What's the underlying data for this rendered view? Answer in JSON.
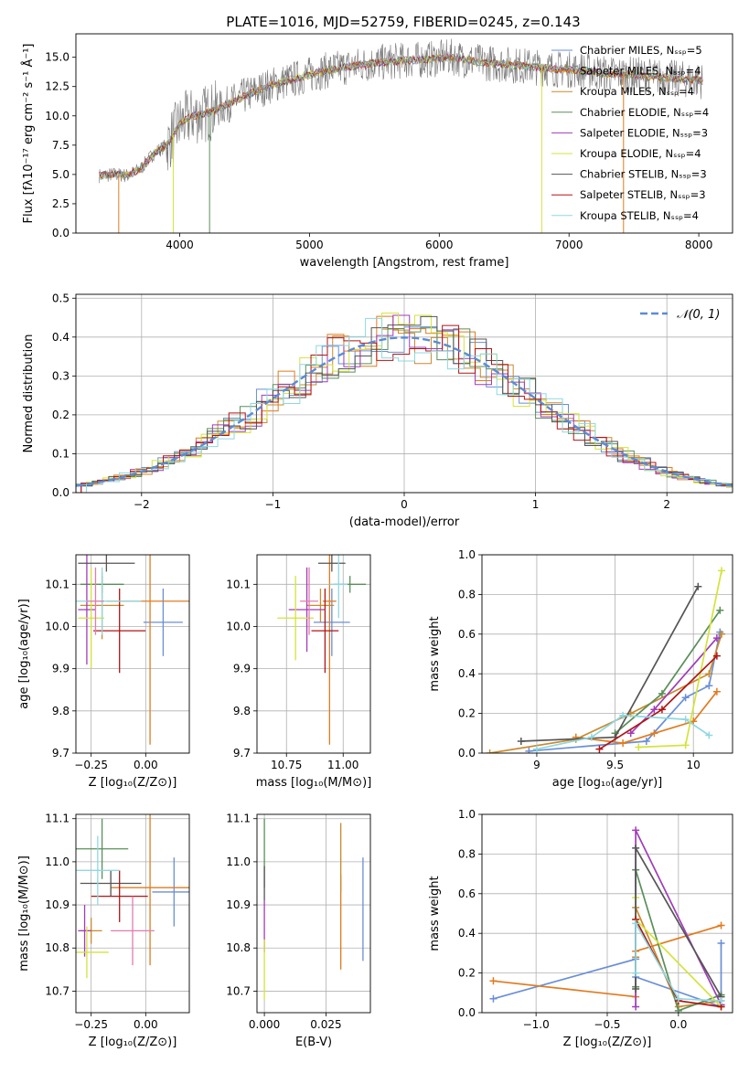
{
  "title": "PLATE=1016, MJD=52759, FIBERID=0245, z=0.143",
  "colors": [
    "#6a8fd6",
    "#e07b1f",
    "#c98a2d",
    "#5a8f5a",
    "#a03cb8",
    "#d4e33a",
    "#555555",
    "#b01515",
    "#8fd8e0",
    "#e07db0",
    "#7fbf3f",
    "#6ec6ff"
  ],
  "chart_data": [
    {
      "id": "spectrum",
      "type": "line",
      "xlabel": "wavelength [Angstrom, rest frame]",
      "ylabel": "Flux [fλ10⁻¹⁷ erg cm⁻² s⁻¹ Å⁻¹]",
      "xlim": [
        3200,
        8260
      ],
      "ylim": [
        0,
        17
      ],
      "xticks": [
        4000,
        5000,
        6000,
        7000,
        8000
      ],
      "yticks": [
        0.0,
        2.5,
        5.0,
        7.5,
        10.0,
        12.5,
        15.0
      ],
      "x": [
        3380,
        3500,
        3600,
        3700,
        3800,
        3900,
        4000,
        4100,
        4200,
        4300,
        4500,
        4700,
        4900,
        5100,
        5300,
        5500,
        5700,
        5900,
        6100,
        6300,
        6500,
        6700,
        6900,
        7100,
        7300,
        7500,
        7700,
        7900,
        8030
      ],
      "y": [
        4.9,
        5.0,
        4.9,
        5.5,
        6.8,
        7.5,
        9.3,
        10.0,
        10.2,
        10.6,
        11.7,
        12.6,
        13.2,
        13.8,
        14.2,
        14.5,
        14.7,
        14.8,
        15.0,
        14.6,
        14.4,
        14.2,
        14.0,
        13.9,
        13.6,
        13.5,
        13.3,
        13.1,
        13.0
      ],
      "legend": [
        "Chabrier MILES, N_SSP=5",
        "Salpeter MILES, N_SSP=4",
        "Kroupa MILES, N_SSP=4",
        "Chabrier ELODIE, N_SSP=4",
        "Salpeter ELODIE, N_SSP=3",
        "Kroupa ELODIE, N_SSP=4",
        "Chabrier STELIB, N_SSP=3",
        "Salpeter STELIB, N_SSP=3",
        "Kroupa STELIB, N_SSP=4"
      ],
      "legend_position": "upper right"
    },
    {
      "id": "residuals",
      "type": "histogram",
      "xlabel": "(data-model)/error",
      "ylabel": "Normed distribution",
      "xlim": [
        -2.5,
        2.5
      ],
      "ylim": [
        0,
        0.51
      ],
      "xticks": [
        -2,
        -1,
        0,
        1,
        2
      ],
      "yticks": [
        0.0,
        0.1,
        0.2,
        0.3,
        0.4,
        0.5
      ],
      "legend": "𝒩(0, 1)",
      "legend_position": "upper right",
      "grid": true
    },
    {
      "id": "age_vs_Z",
      "type": "errorbar",
      "xlabel": "Z [log₁₀(Z/Z⊙)]",
      "ylabel": "age  [log₁₀(age/yr)]",
      "xlim": [
        -0.32,
        0.2
      ],
      "ylim": [
        9.7,
        10.17
      ],
      "xticks": [
        -0.25,
        0.0
      ],
      "xticklabels": [
        "−0.25",
        "0.00"
      ],
      "yticks": [
        9.7,
        9.8,
        9.9,
        10.0,
        10.1
      ],
      "points": [
        {
          "x": 0.08,
          "y": 10.01,
          "xe": 0.09,
          "ye": 0.08
        },
        {
          "x": 0.02,
          "y": 10.06,
          "xe": 0.2,
          "ye": 0.34
        },
        {
          "x": -0.2,
          "y": 10.05,
          "xe": 0.1,
          "ye": 0.08
        },
        {
          "x": -0.2,
          "y": 10.1,
          "xe": 0.1,
          "ye": 0.02
        },
        {
          "x": -0.27,
          "y": 10.04,
          "xe": 0.04,
          "ye": 0.13
        },
        {
          "x": -0.25,
          "y": 10.02,
          "xe": 0.06,
          "ye": 0.12
        },
        {
          "x": -0.18,
          "y": 10.15,
          "xe": 0.13,
          "ye": 0.02
        },
        {
          "x": -0.12,
          "y": 9.99,
          "xe": 0.12,
          "ye": 0.1
        },
        {
          "x": -0.2,
          "y": 10.06,
          "xe": 0.18,
          "ye": 0.08
        },
        {
          "x": -0.23,
          "y": 10.06,
          "xe": 0.04,
          "ye": 0.08
        }
      ]
    },
    {
      "id": "age_vs_mass",
      "type": "errorbar",
      "xlabel": "mass [log₁₀(M/M⊙)]",
      "ylabel": "",
      "xlim": [
        10.62,
        11.12
      ],
      "ylim": [
        9.7,
        10.17
      ],
      "xticks": [
        10.75,
        11.0
      ],
      "xticklabels": [
        "10.75",
        "11.00"
      ],
      "yticks": [
        9.7,
        9.8,
        9.9,
        10.0,
        10.1
      ],
      "points": [
        {
          "x": 10.95,
          "y": 10.01,
          "xe": 0.08,
          "ye": 0.08
        },
        {
          "x": 10.94,
          "y": 10.06,
          "xe": 0.03,
          "ye": 0.34
        },
        {
          "x": 10.9,
          "y": 10.05,
          "xe": 0.06,
          "ye": 0.04
        },
        {
          "x": 11.03,
          "y": 10.1,
          "xe": 0.07,
          "ye": 0.02
        },
        {
          "x": 10.84,
          "y": 10.04,
          "xe": 0.08,
          "ye": 0.1
        },
        {
          "x": 10.79,
          "y": 10.02,
          "xe": 0.08,
          "ye": 0.1
        },
        {
          "x": 10.95,
          "y": 10.15,
          "xe": 0.06,
          "ye": 0.02
        },
        {
          "x": 10.92,
          "y": 9.99,
          "xe": 0.06,
          "ye": 0.1
        },
        {
          "x": 10.98,
          "y": 10.1,
          "xe": 0.04,
          "ye": 0.08
        },
        {
          "x": 10.85,
          "y": 10.06,
          "xe": 0.04,
          "ye": 0.08
        }
      ]
    },
    {
      "id": "massweight_vs_age",
      "type": "line",
      "xlabel": "age  [log₁₀(age/yr)]",
      "ylabel": "mass weight",
      "xlim": [
        8.65,
        10.25
      ],
      "ylim": [
        0,
        1.0
      ],
      "xticks": [
        9.0,
        9.5,
        10.0
      ],
      "yticks": [
        0.0,
        0.2,
        0.4,
        0.6,
        0.8,
        1.0
      ],
      "grid": true,
      "series": [
        {
          "x": [
            8.95,
            9.7,
            9.95,
            10.1,
            10.17
          ],
          "y": [
            0.01,
            0.06,
            0.28,
            0.34,
            0.61
          ]
        },
        {
          "x": [
            9.25,
            9.55,
            9.75,
            10.0,
            10.15
          ],
          "y": [
            0.08,
            0.05,
            0.1,
            0.16,
            0.31
          ]
        },
        {
          "x": [
            8.7,
            9.25,
            9.6,
            10.1,
            10.18
          ],
          "y": [
            0.0,
            0.07,
            0.2,
            0.4,
            0.6
          ]
        },
        {
          "x": [
            9.5,
            9.8,
            10.17
          ],
          "y": [
            0.1,
            0.3,
            0.72
          ]
        },
        {
          "x": [
            9.6,
            9.75,
            10.15
          ],
          "y": [
            0.1,
            0.22,
            0.58
          ]
        },
        {
          "x": [
            9.65,
            9.95,
            10.18
          ],
          "y": [
            0.03,
            0.04,
            0.92
          ]
        },
        {
          "x": [
            8.9,
            9.5,
            10.03
          ],
          "y": [
            0.06,
            0.08,
            0.84
          ]
        },
        {
          "x": [
            9.4,
            9.8,
            10.15
          ],
          "y": [
            0.02,
            0.22,
            0.49
          ]
        },
        {
          "x": [
            9.0,
            9.35,
            9.55,
            9.95,
            10.1
          ],
          "y": [
            0.02,
            0.08,
            0.19,
            0.17,
            0.09
          ]
        }
      ]
    },
    {
      "id": "mass_vs_Z",
      "type": "errorbar",
      "xlabel": "Z [log₁₀(Z/Z⊙)]",
      "ylabel": "mass [log₁₀(M/M⊙)]",
      "xlim": [
        -0.32,
        0.2
      ],
      "ylim": [
        10.65,
        11.11
      ],
      "xticks": [
        -0.25,
        0.0
      ],
      "xticklabels": [
        "−0.25",
        "0.00"
      ],
      "yticks": [
        10.7,
        10.8,
        10.9,
        11.0,
        11.1
      ],
      "points": [
        {
          "x": 0.13,
          "y": 10.93,
          "xe": 0.1,
          "ye": 0.08
        },
        {
          "x": 0.02,
          "y": 10.94,
          "xe": 0.18,
          "ye": 0.18
        },
        {
          "x": -0.25,
          "y": 10.84,
          "xe": 0.05,
          "ye": 0.03
        },
        {
          "x": -0.2,
          "y": 11.03,
          "xe": 0.12,
          "ye": 0.07
        },
        {
          "x": -0.28,
          "y": 10.84,
          "xe": 0.03,
          "ye": 0.06
        },
        {
          "x": -0.27,
          "y": 10.79,
          "xe": 0.1,
          "ye": 0.06
        },
        {
          "x": -0.16,
          "y": 10.95,
          "xe": 0.14,
          "ye": 0.03
        },
        {
          "x": -0.12,
          "y": 10.92,
          "xe": 0.13,
          "ye": 0.06
        },
        {
          "x": -0.22,
          "y": 10.98,
          "xe": 0.1,
          "ye": 0.08
        },
        {
          "x": -0.06,
          "y": 10.84,
          "xe": 0.1,
          "ye": 0.08
        }
      ]
    },
    {
      "id": "mass_vs_EBV",
      "type": "errorbar",
      "xlabel": "E(B-V)",
      "ylabel": "",
      "xlim": [
        -0.003,
        0.043
      ],
      "ylim": [
        10.65,
        11.11
      ],
      "xticks": [
        0.0,
        0.025
      ],
      "xticklabels": [
        "0.000",
        "0.025"
      ],
      "yticks": [
        10.7,
        10.8,
        10.9,
        11.0,
        11.1
      ],
      "points": [
        {
          "x": 0.04,
          "y": 10.89,
          "xe": 0.0,
          "ye": 0.12
        },
        {
          "x": 0.031,
          "y": 10.86,
          "xe": 0.0,
          "ye": 0.11
        },
        {
          "x": 0.031,
          "y": 11.01,
          "xe": 0.0,
          "ye": 0.08
        },
        {
          "x": 0.0,
          "y": 11.02,
          "xe": 0.0,
          "ye": 0.08
        },
        {
          "x": 0.0,
          "y": 10.85,
          "xe": 0.0,
          "ye": 0.06
        },
        {
          "x": 0.0,
          "y": 10.75,
          "xe": 0.0,
          "ye": 0.07
        },
        {
          "x": 0.0,
          "y": 10.95,
          "xe": 0.0,
          "ye": 0.04
        }
      ]
    },
    {
      "id": "massweight_vs_Z",
      "type": "line",
      "xlabel": "Z [log₁₀(Z/Z⊙)]",
      "ylabel": "mass weight",
      "xlim": [
        -1.38,
        0.38
      ],
      "ylim": [
        0,
        1.0
      ],
      "xticks": [
        -1.0,
        -0.5,
        0.0
      ],
      "xticklabels": [
        "−1.0",
        "−0.5",
        "0.0"
      ],
      "yticks": [
        0.0,
        0.2,
        0.4,
        0.6,
        0.8,
        1.0
      ],
      "grid": true,
      "series": [
        {
          "x": [
            -1.3,
            -0.3,
            -0.3,
            0.3,
            0.3
          ],
          "y": [
            0.07,
            0.27,
            0.18,
            0.03,
            0.35
          ]
        },
        {
          "x": [
            -1.3,
            -0.3,
            -0.3,
            0.3
          ],
          "y": [
            0.16,
            0.08,
            0.31,
            0.44
          ]
        },
        {
          "x": [
            -0.3,
            -0.3,
            0.0,
            0.3
          ],
          "y": [
            0.28,
            0.53,
            0.03,
            0.06
          ]
        },
        {
          "x": [
            -0.3,
            -0.3,
            0.0,
            0.3
          ],
          "y": [
            0.13,
            0.72,
            0.01,
            0.09
          ]
        },
        {
          "x": [
            -0.3,
            -0.3,
            0.3
          ],
          "y": [
            0.03,
            0.92,
            0.04
          ]
        },
        {
          "x": [
            -0.3,
            -0.3,
            0.3
          ],
          "y": [
            0.58,
            0.47,
            0.03
          ]
        },
        {
          "x": [
            -0.3,
            -0.3,
            0.3
          ],
          "y": [
            0.12,
            0.83,
            0.08
          ]
        },
        {
          "x": [
            -0.3,
            0.0,
            0.3
          ],
          "y": [
            0.47,
            0.06,
            0.03
          ]
        },
        {
          "x": [
            -0.3,
            -0.3,
            0.0,
            0.3
          ],
          "y": [
            0.2,
            0.45,
            0.07,
            0.06
          ]
        }
      ]
    }
  ]
}
